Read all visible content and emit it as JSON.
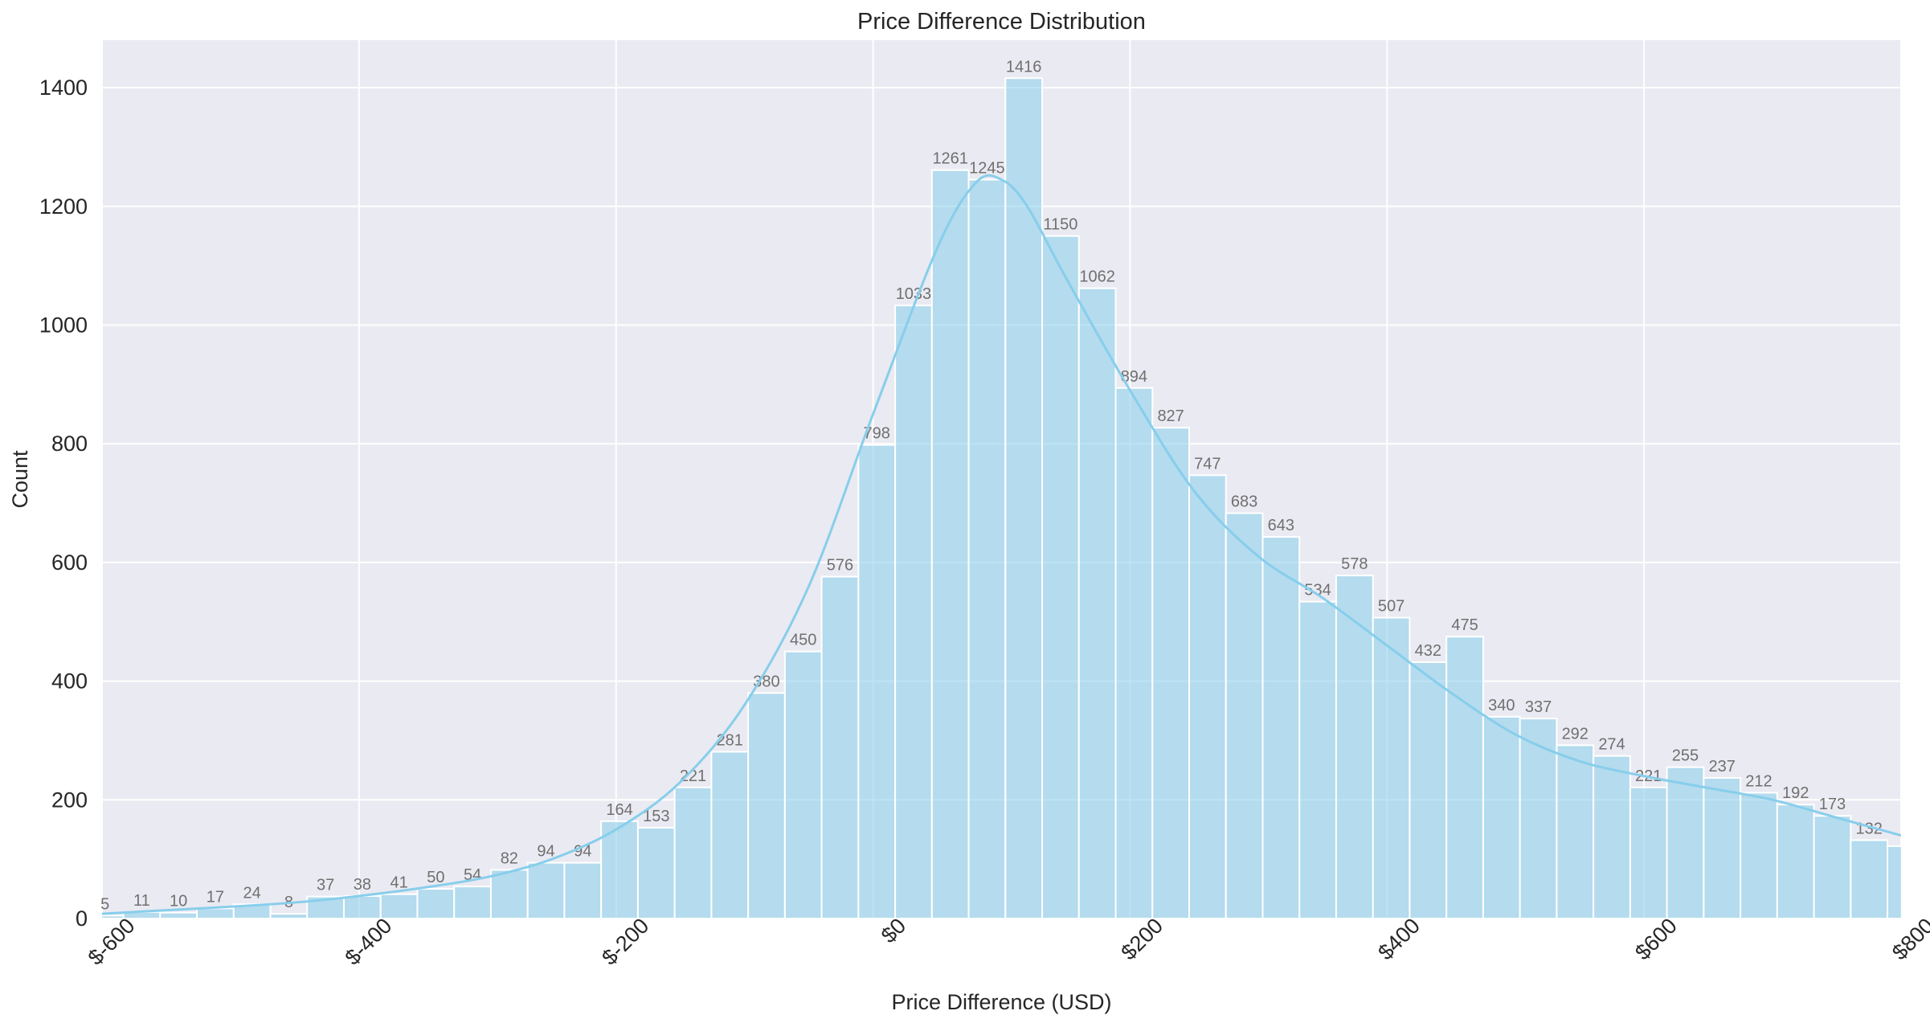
{
  "chart_data": {
    "type": "bar",
    "title": "Price Difference Distribution",
    "xlabel": "Price Difference (USD)",
    "ylabel": "Count",
    "xlim": [
      -600,
      800
    ],
    "ylim": [
      0,
      1480
    ],
    "x_ticks": [
      -600,
      -400,
      -200,
      0,
      200,
      400,
      600,
      800
    ],
    "x_tick_labels": [
      "$-600",
      "$-400",
      "$-200",
      "$0",
      "$200",
      "$400",
      "$600",
      "$800"
    ],
    "y_ticks": [
      0,
      200,
      400,
      600,
      800,
      1000,
      1200,
      1400
    ],
    "y_tick_labels": [
      "0",
      "200",
      "400",
      "600",
      "800",
      "1000",
      "1200",
      "1400"
    ],
    "grid": true,
    "bin_start": -612,
    "bin_width": 28.6,
    "values": [
      5,
      11,
      10,
      17,
      24,
      8,
      37,
      38,
      41,
      50,
      54,
      82,
      94,
      94,
      164,
      153,
      221,
      281,
      380,
      450,
      576,
      798,
      1033,
      1261,
      1245,
      1416,
      1150,
      1062,
      894,
      827,
      747,
      683,
      643,
      534,
      578,
      507,
      432,
      475,
      340,
      337,
      292,
      274,
      221,
      255,
      237,
      212,
      192,
      173,
      132,
      122
    ],
    "value_labels": [
      "5",
      "11",
      "10",
      "17",
      "24",
      "8",
      "37",
      "38",
      "41",
      "50",
      "54",
      "82",
      "94",
      "94",
      "164",
      "153",
      "221",
      "281",
      "380",
      "450",
      "576",
      "798",
      "1033",
      "1261",
      "1245",
      "1416",
      "1150",
      "1062",
      "894",
      "827",
      "747",
      "683",
      "643",
      "534",
      "578",
      "507",
      "432",
      "475",
      "340",
      "337",
      "292",
      "274",
      "221",
      "255",
      "237",
      "212",
      "192",
      "173",
      "132",
      ""
    ],
    "kde": {
      "x": [
        -600,
        -550,
        -500,
        -450,
        -400,
        -350,
        -300,
        -250,
        -200,
        -150,
        -100,
        -50,
        0,
        50,
        80,
        100,
        120,
        150,
        200,
        250,
        300,
        350,
        400,
        450,
        500,
        550,
        600,
        650,
        700,
        750,
        800
      ],
      "y": [
        8,
        14,
        20,
        27,
        38,
        52,
        70,
        100,
        150,
        230,
        360,
        560,
        850,
        1130,
        1240,
        1245,
        1200,
        1080,
        890,
        720,
        610,
        540,
        460,
        380,
        310,
        265,
        240,
        220,
        200,
        170,
        140
      ]
    },
    "colors": {
      "bar": "#87CEEB",
      "kde": "#87CEEB",
      "background": "#EAEAF2",
      "grid": "#FFFFFF"
    }
  }
}
